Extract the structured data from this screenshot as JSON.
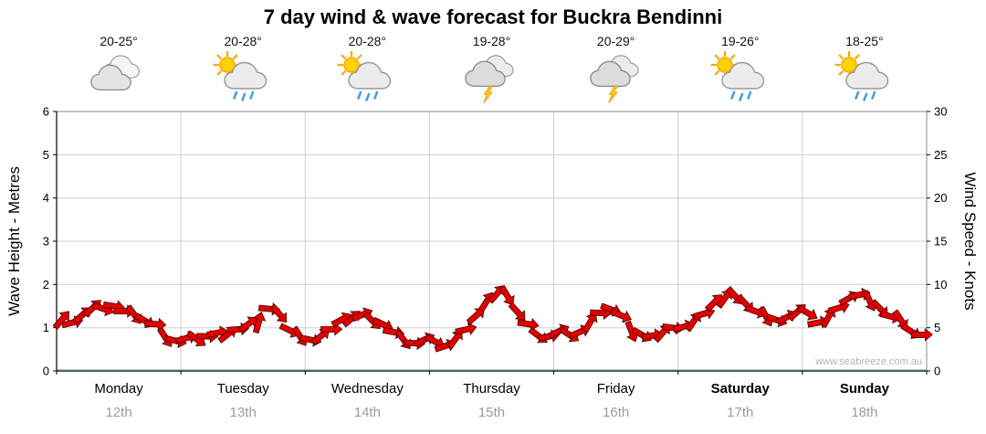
{
  "title": "7 day wind & wave forecast for Buckra Bendinni",
  "watermark": "www.seabreeze.com.au",
  "axes": {
    "left_label": "Wave Height - Metres",
    "right_label": "Wind Speed - Knots",
    "left_ticks": [
      0,
      1,
      2,
      3,
      4,
      5,
      6
    ],
    "right_ticks": [
      0,
      5,
      10,
      15,
      20,
      25,
      30
    ]
  },
  "days": [
    {
      "name": "Monday",
      "date": "12th",
      "temp": "20-25°",
      "icon": "cloudy",
      "bold": false
    },
    {
      "name": "Tuesday",
      "date": "13th",
      "temp": "20-28°",
      "icon": "sun-showers",
      "bold": false
    },
    {
      "name": "Wednesday",
      "date": "14th",
      "temp": "20-28°",
      "icon": "sun-showers",
      "bold": false
    },
    {
      "name": "Thursday",
      "date": "15th",
      "temp": "19-28°",
      "icon": "storm",
      "bold": false
    },
    {
      "name": "Friday",
      "date": "16th",
      "temp": "20-29°",
      "icon": "storm",
      "bold": false
    },
    {
      "name": "Saturday",
      "date": "17th",
      "temp": "19-26°",
      "icon": "sun-showers",
      "bold": true
    },
    {
      "name": "Sunday",
      "date": "18th",
      "temp": "18-25°",
      "icon": "sun-showers",
      "bold": true
    }
  ],
  "chart_data": {
    "type": "line",
    "title": "7 day wind & wave forecast for Buckra Bendinni",
    "categories": [
      "Monday 12th",
      "Tuesday 13th",
      "Wednesday 14th",
      "Thursday 15th",
      "Friday 16th",
      "Saturday 17th",
      "Sunday 18th"
    ],
    "points_per_day": 12,
    "ylabel_left": "Wave Height - Metres",
    "ylabel_right": "Wind Speed - Knots",
    "ylim_left": [
      0,
      6
    ],
    "ylim_right": [
      0,
      30
    ],
    "grid": true,
    "marker": "red wind arrows",
    "series": [
      {
        "name": "Wind Speed (knots)",
        "values": [
          5.5,
          6,
          6.8,
          7.5,
          7.3,
          7.5,
          6.8,
          6.3,
          5.5,
          5,
          4.3,
          3.8,
          4,
          3.8,
          4,
          4.3,
          4,
          4.5,
          5,
          6,
          7.5,
          6.8,
          4.8,
          4,
          3.5,
          3.8,
          4.5,
          5.5,
          6.5,
          6.8,
          6,
          5.5,
          4.5,
          3.5,
          3,
          3.3,
          3,
          3.3,
          4,
          5,
          6.5,
          8,
          8.8,
          8.5,
          6.5,
          5,
          4.5,
          4.3,
          4.8,
          4.3,
          4.5,
          5.5,
          6.5,
          6.8,
          6,
          5,
          4.5,
          4.3,
          4.5,
          5,
          5,
          5.5,
          6.3,
          7.5,
          8.8,
          9,
          8,
          7,
          6.3,
          5.8,
          6,
          6.5,
          6.3,
          6,
          6.5,
          7.5,
          8.5,
          8.8,
          8,
          7,
          6,
          5.5,
          5,
          4.5
        ]
      }
    ],
    "colors": {
      "arrow_fill": "#e10000",
      "arrow_stroke": "#4d0000",
      "grid": "#d0d0d0"
    }
  }
}
